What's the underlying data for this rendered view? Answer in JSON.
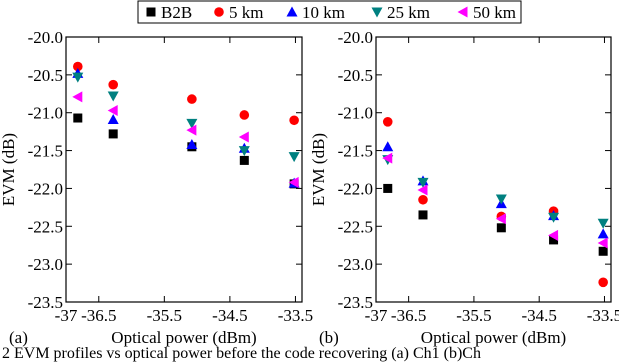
{
  "legend": [
    {
      "label": "B2B",
      "color": "#000000",
      "marker": "square"
    },
    {
      "label": "5 km",
      "color": "#ff0000",
      "marker": "circle"
    },
    {
      "label": "10 km",
      "color": "#0000ff",
      "marker": "triangle-up"
    },
    {
      "label": "25 km",
      "color": "#008080",
      "marker": "triangle-down"
    },
    {
      "label": "50 km",
      "color": "#ff00ff",
      "marker": "triangle-left"
    }
  ],
  "caption": "2 EVM profiles vs optical power before the code recovering (a) Ch1 (b)Ch",
  "chart_data": [
    {
      "type": "scatter",
      "panel_label": "(a)",
      "xlabel": "Optical power (dBm)",
      "ylabel": "EVM (dB)",
      "xlim": [
        -37,
        -33.4
      ],
      "ylim": [
        -23.5,
        -20
      ],
      "xticks": [
        -37,
        -36.5,
        -35.5,
        -34.5,
        -33.5
      ],
      "yticks": [
        -20.0,
        -20.5,
        -21.0,
        -21.5,
        -22.0,
        -22.5,
        -23.0,
        -23.5
      ],
      "xtick_labels": [
        "-37",
        "-36.5",
        "-35.5",
        "-34.5",
        "-33.5"
      ],
      "ytick_labels": [
        "-20.0",
        "-20.5",
        "-21.0",
        "-21.5",
        "-22.0",
        "-22.5",
        "-23.0",
        "-23.5"
      ],
      "grid": false,
      "legend_position": "top",
      "series": [
        {
          "name": "B2B",
          "x": [
            -36.82,
            -36.28,
            -35.08,
            -34.28,
            -33.52
          ],
          "y": [
            -21.07,
            -21.28,
            -21.45,
            -21.63,
            -21.94
          ]
        },
        {
          "name": "5 km",
          "x": [
            -36.82,
            -36.28,
            -35.08,
            -34.28,
            -33.52
          ],
          "y": [
            -20.39,
            -20.63,
            -20.82,
            -21.03,
            -21.1
          ]
        },
        {
          "name": "10 km",
          "x": [
            -36.82,
            -36.28,
            -35.08,
            -34.28,
            -33.52
          ],
          "y": [
            -20.48,
            -21.09,
            -21.42,
            -21.47,
            -21.93
          ]
        },
        {
          "name": "25 km",
          "x": [
            -36.82,
            -36.28,
            -35.08,
            -34.28,
            -33.52
          ],
          "y": [
            -20.53,
            -20.78,
            -21.14,
            -21.5,
            -21.58
          ]
        },
        {
          "name": "50 km",
          "x": [
            -36.82,
            -36.28,
            -35.08,
            -34.28,
            -33.52
          ],
          "y": [
            -20.79,
            -20.97,
            -21.23,
            -21.32,
            -21.92
          ]
        }
      ]
    },
    {
      "type": "scatter",
      "panel_label": "(b)",
      "xlabel": "Optical power (dBm)",
      "ylabel": "EVM (dB)",
      "xlim": [
        -37,
        -33.4
      ],
      "ylim": [
        -23.5,
        -20
      ],
      "xticks": [
        -37,
        -36.5,
        -35.5,
        -34.5,
        -33.5
      ],
      "yticks": [
        -20.0,
        -20.5,
        -21.0,
        -21.5,
        -22.0,
        -22.5,
        -23.0,
        -23.5
      ],
      "xtick_labels": [
        "-37",
        "-36.5",
        "-35.5",
        "-34.5",
        "-33.5"
      ],
      "ytick_labels": [
        "-20.0",
        "-20.5",
        "-21.0",
        "-21.5",
        "-22.0",
        "-22.5",
        "-23.0",
        "-23.5"
      ],
      "grid": false,
      "legend_position": "top",
      "series": [
        {
          "name": "B2B",
          "x": [
            -36.82,
            -36.28,
            -35.08,
            -34.28,
            -33.52
          ],
          "y": [
            -22.0,
            -22.35,
            -22.52,
            -22.68,
            -22.83
          ]
        },
        {
          "name": "5 km",
          "x": [
            -36.82,
            -36.28,
            -35.08,
            -34.28,
            -33.52
          ],
          "y": [
            -21.12,
            -22.15,
            -22.37,
            -22.3,
            -23.24
          ]
        },
        {
          "name": "10 km",
          "x": [
            -36.82,
            -36.28,
            -35.08,
            -34.28,
            -33.52
          ],
          "y": [
            -21.45,
            -21.9,
            -22.2,
            -22.36,
            -22.6
          ]
        },
        {
          "name": "25 km",
          "x": [
            -36.82,
            -36.28,
            -35.08,
            -34.28,
            -33.52
          ],
          "y": [
            -21.62,
            -21.92,
            -22.14,
            -22.38,
            -22.46
          ]
        },
        {
          "name": "50 km",
          "x": [
            -36.82,
            -36.28,
            -35.08,
            -34.28,
            -33.52
          ],
          "y": [
            -21.6,
            -22.02,
            -22.4,
            -22.62,
            -22.72
          ]
        }
      ]
    }
  ]
}
